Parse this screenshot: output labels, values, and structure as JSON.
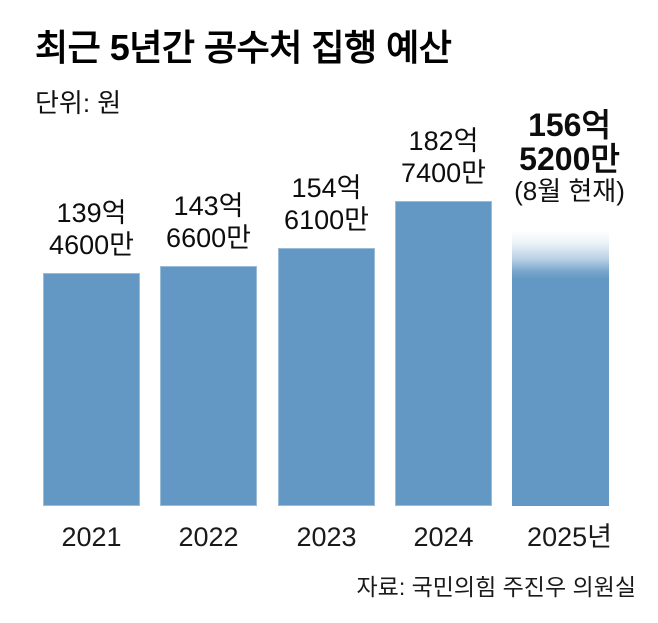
{
  "title": "최근 5년간 공수처 집행 예산",
  "unit_label": "단위: 원",
  "source": "자료: 국민의힘 주진우 의원실",
  "chart_data": {
    "type": "bar",
    "title": "최근 5년간 공수처 집행 예산",
    "unit": "원",
    "grid": false,
    "legend": "none",
    "bar_color": "#6398c4",
    "categories": [
      "2021",
      "2022",
      "2023",
      "2024",
      "2025년"
    ],
    "values_eok": [
      139.46,
      143.66,
      154.61,
      182.74,
      156.52
    ],
    "bars": [
      {
        "year": "2021",
        "label_line1": "139억",
        "label_line2": "4600만",
        "value_eok": 139.46,
        "bold": false,
        "fade_top": false,
        "note": ""
      },
      {
        "year": "2022",
        "label_line1": "143억",
        "label_line2": "6600만",
        "value_eok": 143.66,
        "bold": false,
        "fade_top": false,
        "note": ""
      },
      {
        "year": "2023",
        "label_line1": "154억",
        "label_line2": "6100만",
        "value_eok": 154.61,
        "bold": false,
        "fade_top": false,
        "note": ""
      },
      {
        "year": "2024",
        "label_line1": "182억",
        "label_line2": "7400만",
        "value_eok": 182.74,
        "bold": false,
        "fade_top": false,
        "note": ""
      },
      {
        "year": "2025년",
        "label_line1": "156억",
        "label_line2": "5200만",
        "value_eok": 156.52,
        "bold": true,
        "fade_top": true,
        "note": "(8월 현재)"
      }
    ]
  }
}
